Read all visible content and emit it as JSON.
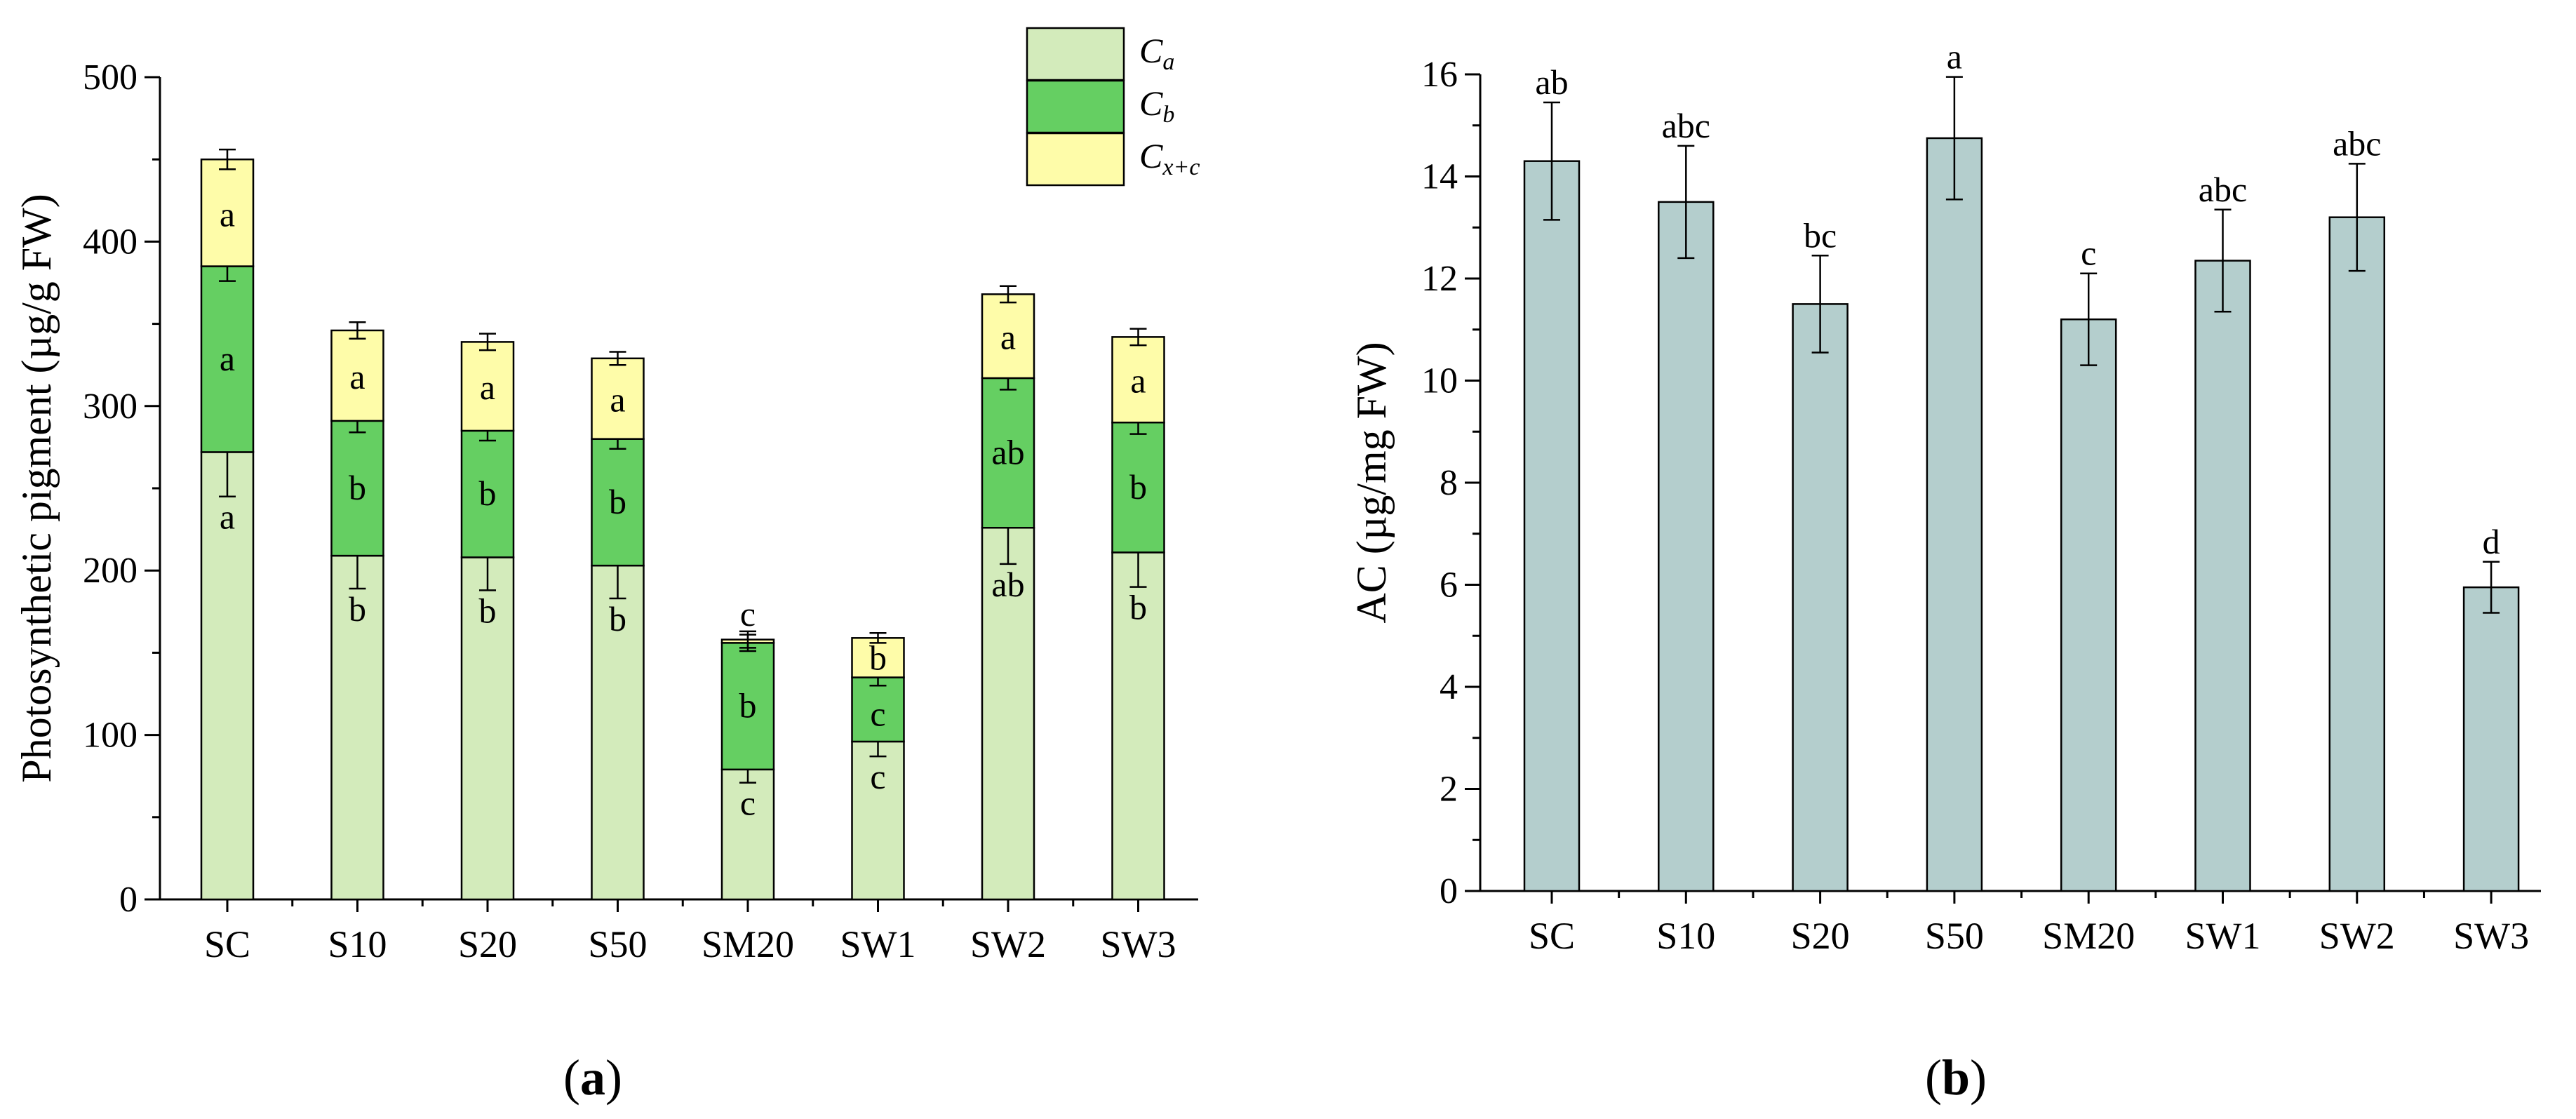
{
  "colors": {
    "Ca": "#d3ebbb",
    "Cb": "#65cf62",
    "Cxc": "#fefca9",
    "AC": "#b4cecd",
    "stroke": "#000000"
  },
  "chart_data": [
    {
      "type": "bar",
      "stacked": true,
      "panel_label": "(a)",
      "panel_label_parts": [
        "(",
        "a",
        ")"
      ],
      "title": "",
      "xlabel": "",
      "ylabel": "Photosynthetic pigment (µg/g FW)",
      "ylim": [
        0,
        500
      ],
      "yticks": [
        "0",
        "100",
        "200",
        "300",
        "400",
        "500"
      ],
      "ytick_values": [
        0,
        100,
        200,
        300,
        400,
        500
      ],
      "categories": [
        "SC",
        "S10",
        "S20",
        "S50",
        "SM20",
        "SW1",
        "SW2",
        "SW3"
      ],
      "legend": [
        {
          "base": "C",
          "sub": "a"
        },
        {
          "base": "C",
          "sub": "b"
        },
        {
          "base": "C",
          "sub": "x+c"
        }
      ],
      "legend_position": "top-right",
      "series": [
        {
          "name": "Ca",
          "values": [
            272,
            209,
            208,
            203,
            79,
            96,
            226,
            211
          ],
          "errors": [
            27,
            20,
            20,
            20,
            8,
            9,
            22,
            21
          ],
          "letters": [
            "a",
            "b",
            "b",
            "b",
            "c",
            "c",
            "ab",
            "b"
          ]
        },
        {
          "name": "Cb",
          "values": [
            113,
            82,
            77,
            77,
            77,
            39,
            91,
            79
          ],
          "errors": [
            9,
            7,
            6,
            6,
            5,
            5,
            7,
            7
          ],
          "letters": [
            "a",
            "b",
            "b",
            "b",
            "b",
            "c",
            "ab",
            "b"
          ]
        },
        {
          "name": "Cx+c",
          "values": [
            65,
            55,
            54,
            49,
            2,
            24,
            51,
            52
          ],
          "errors": [
            6,
            5,
            5,
            4,
            5,
            3,
            5,
            5
          ],
          "letters": [
            "a",
            "a",
            "a",
            "a",
            "c",
            "b",
            "a",
            "a"
          ]
        }
      ]
    },
    {
      "type": "bar",
      "panel_label": "(b)",
      "panel_label_parts": [
        "(",
        "b",
        ")"
      ],
      "title": "",
      "xlabel": "",
      "ylabel": "AC (µg/mg FW)",
      "ylim": [
        0,
        16
      ],
      "yticks": [
        "0",
        "2",
        "4",
        "6",
        "8",
        "10",
        "12",
        "14",
        "16"
      ],
      "ytick_values": [
        0,
        2,
        4,
        6,
        8,
        10,
        12,
        14,
        16
      ],
      "categories": [
        "SC",
        "S10",
        "S20",
        "S50",
        "SM20",
        "SW1",
        "SW2",
        "SW3"
      ],
      "values": [
        14.3,
        13.5,
        11.5,
        14.75,
        11.2,
        12.35,
        13.2,
        5.95
      ],
      "errors": [
        1.15,
        1.1,
        0.95,
        1.2,
        0.9,
        1.0,
        1.05,
        0.5
      ],
      "letters": [
        "ab",
        "abc",
        "bc",
        "a",
        "c",
        "abc",
        "abc",
        "d"
      ]
    }
  ]
}
